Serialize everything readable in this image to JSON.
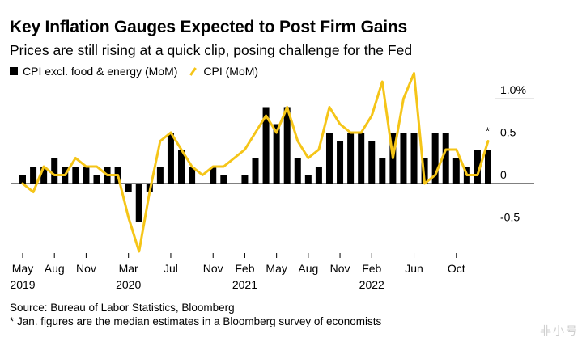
{
  "title": "Key Inflation Gauges Expected to Post Firm Gains",
  "subtitle": "Prices are still rising at a quick clip, posing challenge for the Fed",
  "legend": {
    "core": "CPI excl. food & energy (MoM)",
    "headline": "CPI (MoM)"
  },
  "footnotes": {
    "source": "Source: Bureau of Labor Statistics, Bloomberg",
    "note": "* Jan. figures are the median estimates in a Bloomberg survey of economists"
  },
  "watermark": "非小号",
  "colors": {
    "bar": "#000000",
    "line": "#f5c518",
    "grid": "#cfcfcf"
  },
  "chart_data": {
    "type": "bar",
    "title": "Key Inflation Gauges Expected to Post Firm Gains",
    "ylabel": "",
    "ylim": [
      -0.8,
      1.2
    ],
    "yticks": [
      {
        "value": 1.0,
        "label": "1.0%"
      },
      {
        "value": 0.5,
        "label": "0.5"
      },
      {
        "value": 0,
        "label": "0"
      },
      {
        "value": -0.5,
        "label": "-0.5"
      }
    ],
    "categories": [
      "2019-05",
      "2019-06",
      "2019-07",
      "2019-08",
      "2019-09",
      "2019-10",
      "2019-11",
      "2019-12",
      "2020-01",
      "2020-02",
      "2020-03",
      "2020-04",
      "2020-05",
      "2020-06",
      "2020-07",
      "2020-08",
      "2020-09",
      "2020-10",
      "2020-11",
      "2020-12",
      "2021-01",
      "2021-02",
      "2021-03",
      "2021-04",
      "2021-05",
      "2021-06",
      "2021-07",
      "2021-08",
      "2021-09",
      "2021-10",
      "2021-11",
      "2021-12",
      "2022-01",
      "2022-02",
      "2022-03",
      "2022-04",
      "2022-05",
      "2022-06",
      "2022-07",
      "2022-08",
      "2022-09",
      "2022-10",
      "2022-11",
      "2022-12",
      "2023-01"
    ],
    "xticks": [
      {
        "index": 0,
        "label": "May",
        "year": "2019"
      },
      {
        "index": 3,
        "label": "Aug",
        "year": ""
      },
      {
        "index": 6,
        "label": "Nov",
        "year": ""
      },
      {
        "index": 10,
        "label": "Mar",
        "year": "2020"
      },
      {
        "index": 14,
        "label": "Jul",
        "year": ""
      },
      {
        "index": 18,
        "label": "Nov",
        "year": ""
      },
      {
        "index": 21,
        "label": "Feb",
        "year": "2021"
      },
      {
        "index": 24,
        "label": "May",
        "year": ""
      },
      {
        "index": 27,
        "label": "Aug",
        "year": ""
      },
      {
        "index": 30,
        "label": "Nov",
        "year": ""
      },
      {
        "index": 33,
        "label": "Feb",
        "year": "2022"
      },
      {
        "index": 37,
        "label": "Jun",
        "year": ""
      },
      {
        "index": 41,
        "label": "Oct",
        "year": ""
      }
    ],
    "series": [
      {
        "name": "CPI excl. food & energy (MoM)",
        "type": "bar",
        "values": [
          0.1,
          0.2,
          0.2,
          0.3,
          0.2,
          0.2,
          0.2,
          0.1,
          0.2,
          0.2,
          -0.1,
          -0.45,
          -0.1,
          0.2,
          0.6,
          0.4,
          0.2,
          0.0,
          0.2,
          0.1,
          0.0,
          0.1,
          0.3,
          0.9,
          0.7,
          0.9,
          0.3,
          0.1,
          0.2,
          0.6,
          0.5,
          0.6,
          0.6,
          0.5,
          0.3,
          0.6,
          0.6,
          0.6,
          0.3,
          0.6,
          0.6,
          0.3,
          0.2,
          0.4,
          0.4
        ]
      },
      {
        "name": "CPI (MoM)",
        "type": "line",
        "values": [
          0.0,
          -0.1,
          0.2,
          0.1,
          0.1,
          0.3,
          0.2,
          0.2,
          0.1,
          0.1,
          -0.4,
          -0.8,
          -0.1,
          0.5,
          0.6,
          0.4,
          0.2,
          0.1,
          0.2,
          0.2,
          0.3,
          0.4,
          0.6,
          0.8,
          0.6,
          0.9,
          0.5,
          0.3,
          0.4,
          0.9,
          0.7,
          0.6,
          0.6,
          0.8,
          1.2,
          0.3,
          1.0,
          1.3,
          0.0,
          0.1,
          0.4,
          0.4,
          0.1,
          0.1,
          0.5
        ]
      }
    ],
    "annotations": [
      {
        "index": 44,
        "text": "*"
      }
    ]
  }
}
